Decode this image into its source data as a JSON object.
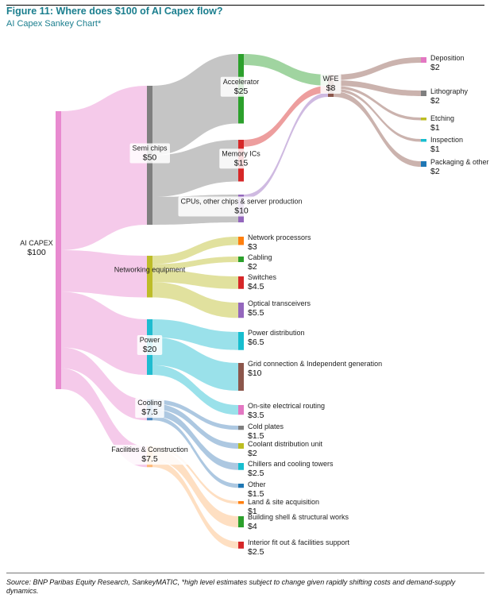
{
  "figure": {
    "title": "Figure 11: Where does $100 of AI Capex flow?",
    "subtitle": "AI Capex Sankey Chart*",
    "source": "Source:  BNP Paribas Equity Research, SankeyMATIC, *high level estimates subject to change given rapidly shifting costs and demand-supply dynamics."
  },
  "chart_data": {
    "type": "sankey",
    "title": "Figure 11: Where does $100 of AI Capex flow?",
    "subtitle": "AI Capex Sankey Chart*",
    "nodes": [
      {
        "id": "capex",
        "name": "AI CAPEX",
        "value_label": "$100",
        "value": 100,
        "color": "#e88ad0"
      },
      {
        "id": "semi",
        "name": "Semi chips",
        "value_label": "$50",
        "value": 50,
        "color": "#7f7f7f"
      },
      {
        "id": "net",
        "name": "Networking equipment",
        "value_label": "",
        "value": 15,
        "color": "#bdbc28"
      },
      {
        "id": "power",
        "name": "Power",
        "value_label": "$20",
        "value": 20,
        "color": "#1fbcd0"
      },
      {
        "id": "cool",
        "name": "Cooling",
        "value_label": "$7.5",
        "value": 7.5,
        "color": "#4a86bd"
      },
      {
        "id": "fac",
        "name": "Facilities & Construction",
        "value_label": "$7.5",
        "value": 7.5,
        "color": "#fdb978"
      },
      {
        "id": "acc",
        "name": "Accelerator",
        "value_label": "$25",
        "value": 25,
        "color": "#2ca02c"
      },
      {
        "id": "mem",
        "name": "Memory ICs",
        "value_label": "$15",
        "value": 15,
        "color": "#d62728"
      },
      {
        "id": "cpu",
        "name": "CPUs, other chips & server production",
        "value_label": "$10",
        "value": 10,
        "color": "#9467bd"
      },
      {
        "id": "wfe",
        "name": "WFE",
        "value_label": "$8",
        "value": 8,
        "color": "#8c564b"
      },
      {
        "id": "dep",
        "name": "Deposition",
        "value_label": "$2",
        "value": 2,
        "color": "#e377c2"
      },
      {
        "id": "lith",
        "name": "Lithography",
        "value_label": "$2",
        "value": 2,
        "color": "#7f7f7f"
      },
      {
        "id": "etch",
        "name": "Etching",
        "value_label": "$1",
        "value": 1,
        "color": "#bcbd22"
      },
      {
        "id": "insp",
        "name": "Inspection",
        "value_label": "$1",
        "value": 1,
        "color": "#17becf"
      },
      {
        "id": "pack",
        "name": "Packaging & other",
        "value_label": "$2",
        "value": 2,
        "color": "#1f77b4"
      },
      {
        "id": "np",
        "name": "Network processors",
        "value_label": "$3",
        "value": 3,
        "color": "#ff7f0e"
      },
      {
        "id": "cab",
        "name": "Cabling",
        "value_label": "$2",
        "value": 2,
        "color": "#2ca02c"
      },
      {
        "id": "sw",
        "name": "Switches",
        "value_label": "$4.5",
        "value": 4.5,
        "color": "#d62728"
      },
      {
        "id": "opt",
        "name": "Optical transceivers",
        "value_label": "$5.5",
        "value": 5.5,
        "color": "#9467bd"
      },
      {
        "id": "pd",
        "name": "Power distribution",
        "value_label": "$6.5",
        "value": 6.5,
        "color": "#17becf"
      },
      {
        "id": "grid",
        "name": "Grid connection & Independent generation",
        "value_label": "$10",
        "value": 10,
        "color": "#8c564b"
      },
      {
        "id": "onsite",
        "name": "On-site electrical routing",
        "value_label": "$3.5",
        "value": 3.5,
        "color": "#e377c2"
      },
      {
        "id": "cold",
        "name": "Cold plates",
        "value_label": "$1.5",
        "value": 1.5,
        "color": "#7f7f7f"
      },
      {
        "id": "cdu",
        "name": "Coolant distribution unit",
        "value_label": "$2",
        "value": 2,
        "color": "#bcbd22"
      },
      {
        "id": "chill",
        "name": "Chillers and cooling towers",
        "value_label": "$2.5",
        "value": 2.5,
        "color": "#17becf"
      },
      {
        "id": "other",
        "name": "Other",
        "value_label": "$1.5",
        "value": 1.5,
        "color": "#1f77b4"
      },
      {
        "id": "land",
        "name": "Land & site acquisition",
        "value_label": "$1",
        "value": 1,
        "color": "#ff7f0e"
      },
      {
        "id": "shell",
        "name": "Building shell & structural works",
        "value_label": "$4",
        "value": 4,
        "color": "#2ca02c"
      },
      {
        "id": "fit",
        "name": "Interior fit out & facilities support",
        "value_label": "$2.5",
        "value": 2.5,
        "color": "#d62728"
      }
    ],
    "links": [
      {
        "source": "capex",
        "target": "semi",
        "value": 50
      },
      {
        "source": "capex",
        "target": "net",
        "value": 15
      },
      {
        "source": "capex",
        "target": "power",
        "value": 20
      },
      {
        "source": "capex",
        "target": "cool",
        "value": 7.5
      },
      {
        "source": "capex",
        "target": "fac",
        "value": 7.5
      },
      {
        "source": "semi",
        "target": "acc",
        "value": 25
      },
      {
        "source": "semi",
        "target": "mem",
        "value": 15
      },
      {
        "source": "semi",
        "target": "cpu",
        "value": 10
      },
      {
        "source": "acc",
        "target": "wfe",
        "value": 4
      },
      {
        "source": "mem",
        "target": "wfe",
        "value": 2.5
      },
      {
        "source": "cpu",
        "target": "wfe",
        "value": 1.5
      },
      {
        "source": "wfe",
        "target": "dep",
        "value": 2
      },
      {
        "source": "wfe",
        "target": "lith",
        "value": 2
      },
      {
        "source": "wfe",
        "target": "etch",
        "value": 1
      },
      {
        "source": "wfe",
        "target": "insp",
        "value": 1
      },
      {
        "source": "wfe",
        "target": "pack",
        "value": 2
      },
      {
        "source": "net",
        "target": "np",
        "value": 3
      },
      {
        "source": "net",
        "target": "cab",
        "value": 2
      },
      {
        "source": "net",
        "target": "sw",
        "value": 4.5
      },
      {
        "source": "net",
        "target": "opt",
        "value": 5.5
      },
      {
        "source": "power",
        "target": "pd",
        "value": 6.5
      },
      {
        "source": "power",
        "target": "grid",
        "value": 10
      },
      {
        "source": "power",
        "target": "onsite",
        "value": 3.5
      },
      {
        "source": "cool",
        "target": "cold",
        "value": 1.5
      },
      {
        "source": "cool",
        "target": "cdu",
        "value": 2
      },
      {
        "source": "cool",
        "target": "chill",
        "value": 2.5
      },
      {
        "source": "cool",
        "target": "other",
        "value": 1.5
      },
      {
        "source": "fac",
        "target": "land",
        "value": 1
      },
      {
        "source": "fac",
        "target": "shell",
        "value": 4
      },
      {
        "source": "fac",
        "target": "fit",
        "value": 2.5
      }
    ]
  }
}
